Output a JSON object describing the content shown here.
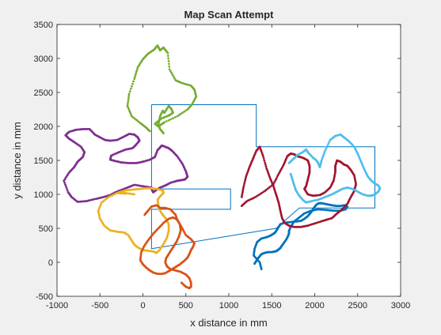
{
  "chart_data": {
    "type": "scatter",
    "title": "Map Scan Attempt",
    "xlabel": "x distance in mm",
    "ylabel": "y distance in mm",
    "xlim": [
      -1000,
      3000
    ],
    "ylim": [
      -500,
      3500
    ],
    "xticks": [
      -1000,
      -500,
      0,
      500,
      1000,
      1500,
      2000,
      2500,
      3000
    ],
    "yticks": [
      -500,
      0,
      500,
      1000,
      1500,
      2000,
      2500,
      3000,
      3500
    ],
    "grid": false,
    "legend": "none",
    "colors": {
      "figure_background": "#f0f0f0",
      "axes_background": "#ffffff",
      "axes_edge": "#262626",
      "map_outline": "#0072bd"
    },
    "map_outline": {
      "x": [
        100,
        660,
        660,
        1320,
        1320,
        2700,
        2700,
        2650,
        1900,
        1820,
        1550,
        100,
        100,
        1020,
        1020,
        100,
        100
      ],
      "y": [
        2320,
        2320,
        2320,
        2320,
        1700,
        1700,
        800,
        800,
        800,
        800,
        500,
        200,
        780,
        780,
        1080,
        1080,
        2320
      ]
    },
    "series": [
      {
        "color": "#77ac30",
        "x": [
          80,
          40,
          -30,
          -130,
          -180,
          -160,
          -100,
          -60,
          0,
          60,
          130,
          170,
          200,
          240,
          290,
          310,
          380,
          450,
          560,
          600,
          620,
          570,
          520,
          400,
          250,
          180,
          140,
          220,
          300,
          350,
          330,
          300,
          250,
          230,
          200,
          180,
          200,
          240
        ],
        "y": [
          1930,
          1980,
          2050,
          2150,
          2300,
          2480,
          2700,
          2870,
          2990,
          3070,
          3130,
          3190,
          3120,
          3160,
          3080,
          2840,
          2680,
          2640,
          2600,
          2540,
          2440,
          2320,
          2250,
          2150,
          2060,
          2000,
          2040,
          2120,
          2160,
          2200,
          2260,
          2300,
          2200,
          2230,
          2150,
          2030,
          1960,
          1900
        ]
      },
      {
        "color": "#7e2f8e",
        "x": [
          100,
          0,
          -100,
          -180,
          -260,
          -320,
          -380,
          -460,
          -560,
          -660,
          -760,
          -830,
          -870,
          -920,
          -860,
          -800,
          -760,
          -700,
          -680,
          -720,
          -800,
          -860,
          -900,
          -860,
          -780,
          -700,
          -620,
          -560,
          -500,
          -440,
          -380,
          -300,
          -220,
          -160,
          -100,
          -60,
          -40,
          -80,
          -120,
          -200,
          -280,
          -370,
          -380,
          -320,
          -250,
          -160,
          -80,
          0,
          80,
          140,
          170,
          200,
          220,
          260,
          300,
          340,
          400,
          460,
          500,
          520,
          490,
          450,
          400,
          320,
          260,
          200,
          150,
          120,
          100
        ],
        "y": [
          1100,
          1120,
          1140,
          1100,
          1060,
          1030,
          990,
          960,
          930,
          900,
          890,
          960,
          1030,
          1200,
          1320,
          1400,
          1480,
          1550,
          1620,
          1700,
          1770,
          1820,
          1870,
          1920,
          1950,
          1960,
          1960,
          1880,
          1840,
          1800,
          1790,
          1800,
          1850,
          1890,
          1880,
          1840,
          1790,
          1730,
          1680,
          1660,
          1620,
          1570,
          1510,
          1490,
          1470,
          1460,
          1460,
          1480,
          1510,
          1550,
          1650,
          1690,
          1720,
          1700,
          1680,
          1640,
          1560,
          1450,
          1340,
          1260,
          1220,
          1210,
          1200,
          1170,
          1130,
          1100,
          1060,
          1030,
          1080
        ]
      },
      {
        "color": "#edb120",
        "x": [
          -200,
          -300,
          -400,
          -480,
          -520,
          -500,
          -450,
          -380,
          -300,
          -220,
          -170,
          -130,
          -100,
          -60,
          0,
          60,
          120,
          160,
          200,
          240,
          280,
          300,
          300,
          270,
          230,
          200,
          180,
          170,
          200,
          240,
          230,
          160,
          100,
          40,
          -40,
          -120,
          -200,
          -280,
          -200,
          -100
        ],
        "y": [
          1010,
          1020,
          960,
          880,
          760,
          640,
          540,
          470,
          450,
          440,
          400,
          320,
          260,
          220,
          180,
          170,
          160,
          140,
          190,
          270,
          360,
          460,
          560,
          640,
          700,
          760,
          840,
          920,
          970,
          1020,
          1060,
          1080,
          1090,
          1090,
          1080,
          1070,
          1060,
          1030,
          1020,
          1000
        ]
      },
      {
        "color": "#d95319",
        "x": [
          20,
          60,
          100,
          160,
          200,
          260,
          320,
          380,
          400,
          450,
          500,
          560,
          600,
          580,
          560,
          540,
          520,
          480,
          430,
          380,
          340,
          300,
          260,
          220,
          170,
          120,
          80,
          40,
          0,
          -30,
          -20,
          20,
          70,
          120,
          180,
          240,
          300,
          350,
          400,
          430,
          440,
          420,
          390,
          360,
          330,
          300,
          270,
          260,
          280,
          320,
          380,
          440,
          500,
          540,
          560,
          560,
          540,
          500,
          450
        ],
        "y": [
          700,
          760,
          820,
          840,
          800,
          800,
          780,
          700,
          620,
          520,
          400,
          340,
          280,
          220,
          180,
          120,
          70,
          20,
          -30,
          -70,
          -100,
          -130,
          -160,
          -170,
          -170,
          -150,
          -120,
          -80,
          -30,
          30,
          150,
          250,
          340,
          420,
          500,
          580,
          640,
          660,
          630,
          560,
          470,
          380,
          300,
          240,
          180,
          120,
          60,
          0,
          -60,
          -100,
          -120,
          -140,
          -180,
          -230,
          -300,
          -360,
          -380,
          -360,
          -300
        ]
      },
      {
        "color": "#0072bd",
        "x": [
          1380,
          1360,
          1290,
          1300,
          1330,
          1380,
          1440,
          1480,
          1520,
          1540,
          1560,
          1580,
          1600,
          1640,
          1700,
          1780,
          1840,
          1880,
          1920,
          1960,
          1990,
          2020,
          2050,
          2080,
          2120,
          2160,
          2200,
          2250,
          2300,
          2350,
          2380,
          2360,
          2300,
          2220,
          2140,
          2040,
          1960,
          1880,
          1820,
          1760,
          1720,
          1700,
          1700,
          1680,
          1650,
          1620,
          1600,
          1580,
          1560,
          1540,
          1500,
          1460,
          1420,
          1380,
          1360,
          1340,
          1320,
          1300
        ],
        "y": [
          -100,
          0,
          100,
          200,
          300,
          350,
          370,
          390,
          420,
          440,
          480,
          520,
          560,
          580,
          590,
          600,
          610,
          640,
          680,
          740,
          800,
          850,
          870,
          870,
          860,
          850,
          840,
          830,
          830,
          840,
          820,
          780,
          760,
          760,
          770,
          780,
          760,
          720,
          660,
          600,
          520,
          460,
          420,
          360,
          300,
          250,
          210,
          190,
          170,
          160,
          150,
          150,
          140,
          120,
          90,
          60,
          20,
          -20
        ]
      },
      {
        "color": "#a2142f",
        "x": [
          1150,
          1210,
          1310,
          1420,
          1520,
          1580,
          1640,
          1680,
          1720,
          1760,
          1800,
          1860,
          1920,
          1940,
          1940,
          1920,
          1900,
          1880,
          1920,
          1980,
          2060,
          2120,
          2180,
          2220,
          2240,
          2240,
          2260,
          2300,
          2340,
          2380,
          2420,
          2460,
          2480,
          2460,
          2420,
          2380,
          2320,
          2260,
          2200,
          2120,
          2020,
          1920,
          1840,
          1760,
          1700,
          1650,
          1620,
          1600,
          1580,
          1550,
          1520,
          1480,
          1440,
          1400,
          1360,
          1320,
          1280,
          1240,
          1200,
          1170,
          1150
        ],
        "y": [
          830,
          900,
          960,
          1050,
          1150,
          1300,
          1440,
          1560,
          1600,
          1590,
          1560,
          1540,
          1500,
          1420,
          1320,
          1220,
          1120,
          1080,
          1000,
          980,
          990,
          1030,
          1100,
          1200,
          1330,
          1420,
          1500,
          1480,
          1440,
          1420,
          1360,
          1280,
          1150,
          1050,
          960,
          860,
          780,
          720,
          650,
          620,
          580,
          540,
          520,
          520,
          540,
          580,
          650,
          760,
          880,
          1000,
          1120,
          1240,
          1380,
          1560,
          1700,
          1640,
          1520,
          1400,
          1260,
          1100,
          960
        ]
      },
      {
        "color": "#4dbeee",
        "x": [
          1700,
          1750,
          1800,
          1860,
          1900,
          1920,
          1980,
          2020,
          2040,
          2060,
          2080,
          2120,
          2180,
          2240,
          2300,
          2340,
          2400,
          2460,
          2500,
          2540,
          2580,
          2620,
          2660,
          2700,
          2740,
          2760,
          2740,
          2700,
          2660,
          2620,
          2560,
          2500,
          2440,
          2380,
          2320,
          2260,
          2200,
          2120,
          2040,
          1960,
          1900,
          1860,
          1820,
          1780,
          1760,
          1740,
          1720
        ],
        "y": [
          1460,
          1520,
          1580,
          1620,
          1660,
          1620,
          1540,
          1500,
          1460,
          1400,
          1500,
          1640,
          1800,
          1860,
          1880,
          1840,
          1780,
          1700,
          1600,
          1480,
          1360,
          1260,
          1200,
          1160,
          1130,
          1090,
          1040,
          1000,
          980,
          980,
          1000,
          1040,
          1080,
          1100,
          1080,
          1040,
          1000,
          960,
          920,
          900,
          880,
          920,
          980,
          1060,
          1140,
          1220,
          1300
        ]
      }
    ]
  }
}
